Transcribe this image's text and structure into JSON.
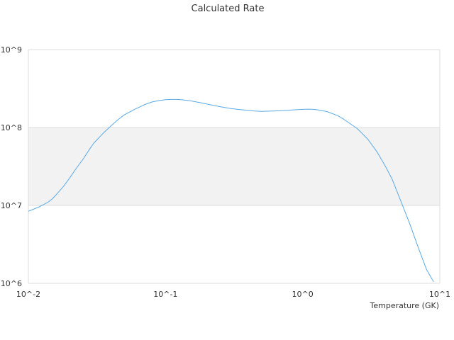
{
  "chart_data": {
    "type": "line",
    "title": "Calculated Rate",
    "xlabel": "Temperature (GK)",
    "ylabel": "",
    "xscale": "log",
    "yscale": "log",
    "xlim": [
      0.01,
      10
    ],
    "ylim": [
      1000000,
      1000000000
    ],
    "x_tick_labels": [
      "10^-2",
      "10^-1",
      "10^0",
      "10^1"
    ],
    "y_tick_labels": [
      "10^6",
      "10^7",
      "10^8",
      "10^9"
    ],
    "band": {
      "from": 10000000,
      "to": 100000000,
      "color": "#f2f2f2"
    },
    "grid": true,
    "legend": "none",
    "series": [
      {
        "color": "#5aa9e6",
        "x": [
          0.01,
          0.011,
          0.012,
          0.013,
          0.014,
          0.015,
          0.016,
          0.018,
          0.02,
          0.022,
          0.025,
          0.028,
          0.03,
          0.035,
          0.04,
          0.045,
          0.05,
          0.06,
          0.07,
          0.08,
          0.09,
          0.1,
          0.11,
          0.12,
          0.13,
          0.15,
          0.18,
          0.2,
          0.25,
          0.3,
          0.35,
          0.4,
          0.45,
          0.5,
          0.6,
          0.7,
          0.8,
          0.9,
          1.0,
          1.1,
          1.2,
          1.3,
          1.5,
          1.8,
          2.0,
          2.5,
          3.0,
          3.5,
          4.0,
          4.5,
          5.0,
          6.0,
          7.0,
          8.0,
          9.0
        ],
        "y": [
          8400000,
          9000000,
          9600000,
          10300000,
          11100000,
          12200000,
          13800000,
          17500000,
          22500000,
          28800000,
          39000000,
          53000000,
          63000000,
          84000000,
          105000000,
          126000000,
          145000000,
          172000000,
          196000000,
          213000000,
          222000000,
          227000000,
          229000000,
          229000000,
          227000000,
          221000000,
          208000000,
          200000000,
          185000000,
          175000000,
          170000000,
          166000000,
          163000000,
          161000000,
          163000000,
          164000000,
          167000000,
          169000000,
          171000000,
          172000000,
          171000000,
          168000000,
          160000000,
          142000000,
          127000000,
          97000000,
          70000000,
          48000000,
          32000000,
          21500000,
          13500000,
          6000000,
          2800000,
          1500000,
          1050000
        ]
      }
    ]
  }
}
